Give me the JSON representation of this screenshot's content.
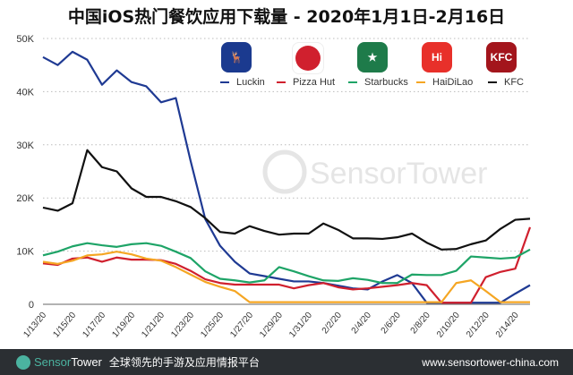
{
  "chart_data": {
    "type": "line",
    "title": "中国iOS热门餐饮应用下载量 - 2020年1月1日-2月16日",
    "xlabel": "",
    "ylabel": "",
    "ylim": [
      0,
      50000
    ],
    "yticks": [
      "0",
      "10K",
      "20K",
      "30K",
      "40K",
      "50K"
    ],
    "ytick_values": [
      0,
      10000,
      20000,
      30000,
      40000,
      50000
    ],
    "grid": true,
    "legend": "top",
    "x": [
      "1/13/20",
      "1/14/20",
      "1/15/20",
      "1/16/20",
      "1/17/20",
      "1/18/20",
      "1/19/20",
      "1/20/20",
      "1/21/20",
      "1/22/20",
      "1/23/20",
      "1/24/20",
      "1/25/20",
      "1/26/20",
      "1/27/20",
      "1/28/20",
      "1/29/20",
      "1/30/20",
      "1/31/20",
      "2/1/20",
      "2/2/20",
      "2/3/20",
      "2/4/20",
      "2/5/20",
      "2/6/20",
      "2/7/20",
      "2/8/20",
      "2/9/20",
      "2/10/20",
      "2/11/20",
      "2/12/20",
      "2/13/20",
      "2/14/20",
      "2/15/20"
    ],
    "xtick_labels": [
      "1/13/20",
      "1/15/20",
      "1/17/20",
      "1/19/20",
      "1/21/20",
      "1/23/20",
      "1/25/20",
      "1/27/20",
      "1/29/20",
      "1/31/20",
      "2/2/20",
      "2/4/20",
      "2/6/20",
      "2/8/20",
      "2/10/20",
      "2/12/20",
      "2/14/20"
    ],
    "series": [
      {
        "name": "Luckin",
        "color": "#1f3a93",
        "values": [
          46500,
          45000,
          47500,
          46000,
          41300,
          44000,
          41800,
          41000,
          38000,
          38800,
          27000,
          16000,
          11000,
          8000,
          5800,
          5300,
          4800,
          4300,
          4300,
          4000,
          3500,
          3000,
          2800,
          4300,
          5500,
          4000,
          300,
          300,
          300,
          300,
          300,
          300,
          2000,
          3600
        ]
      },
      {
        "name": "Pizza Hut",
        "color": "#d0202e",
        "values": [
          7700,
          7400,
          8600,
          8800,
          8000,
          8800,
          8400,
          8400,
          8300,
          7600,
          6300,
          4700,
          4000,
          3700,
          3700,
          3700,
          3700,
          3000,
          3600,
          4000,
          3200,
          2800,
          3000,
          3300,
          3600,
          4000,
          3600,
          300,
          300,
          300,
          5100,
          6100,
          6700,
          14500
        ]
      },
      {
        "name": "Starbucks",
        "color": "#1ea467",
        "values": [
          9200,
          9900,
          10900,
          11500,
          11100,
          10800,
          11300,
          11500,
          11000,
          9900,
          8700,
          6200,
          4800,
          4500,
          4100,
          4500,
          7000,
          6200,
          5300,
          4500,
          4400,
          4900,
          4600,
          4000,
          4000,
          5600,
          5500,
          5500,
          6300,
          9000,
          8800,
          8600,
          8800,
          10300
        ]
      },
      {
        "name": "HaiDiLao",
        "color": "#f5a623",
        "values": [
          8000,
          7600,
          8200,
          9200,
          9400,
          9900,
          9400,
          8600,
          8200,
          7000,
          5600,
          4200,
          3300,
          2500,
          400,
          400,
          400,
          400,
          400,
          400,
          400,
          400,
          400,
          400,
          400,
          400,
          400,
          400,
          4000,
          4500,
          2500,
          400,
          400,
          400
        ]
      },
      {
        "name": "KFC",
        "color": "#111111",
        "values": [
          18200,
          17600,
          19000,
          29000,
          25800,
          25000,
          21800,
          20200,
          20200,
          19400,
          18300,
          16200,
          13600,
          13300,
          14700,
          13800,
          13100,
          13300,
          13300,
          15200,
          14000,
          12400,
          12400,
          12300,
          12600,
          13300,
          11600,
          10300,
          10400,
          11300,
          12000,
          14200,
          15900,
          16100
        ]
      }
    ]
  },
  "watermark": "SensorTower",
  "footer": {
    "brand_a": "Sensor",
    "brand_b": "Tower",
    "tagline": "全球领先的手游及应用情报平台",
    "url": "www.sensortower-china.com"
  }
}
